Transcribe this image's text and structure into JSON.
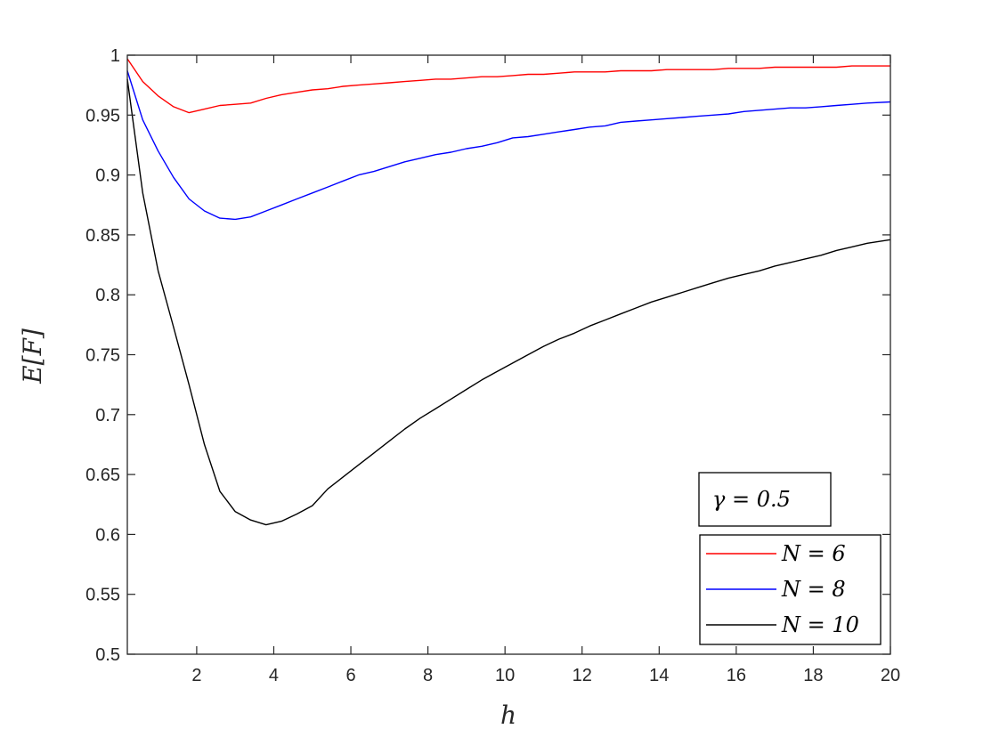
{
  "chart_data": {
    "type": "line",
    "xlabel": "h",
    "ylabel": "E[F]",
    "xlim": [
      0.2,
      20
    ],
    "ylim": [
      0.5,
      1
    ],
    "xticks": [
      "2",
      "4",
      "6",
      "8",
      "10",
      "12",
      "14",
      "16",
      "18",
      "20"
    ],
    "yticks": [
      "0.5",
      "0.55",
      "0.6",
      "0.65",
      "0.7",
      "0.75",
      "0.8",
      "0.85",
      "0.9",
      "0.95",
      "1"
    ],
    "annotation": "γ = 0.5",
    "legend_position": "bottom-right",
    "series": [
      {
        "name": "N = 6",
        "color": "#ff0000",
        "x": [
          0.2,
          0.6,
          1.0,
          1.4,
          1.8,
          2.2,
          2.6,
          3.0,
          3.4,
          3.8,
          4.2,
          4.6,
          5.0,
          5.4,
          5.8,
          6.2,
          6.6,
          7.0,
          7.4,
          7.8,
          8.2,
          8.6,
          9.0,
          9.4,
          9.8,
          10.2,
          10.6,
          11.0,
          11.4,
          11.8,
          12.2,
          12.6,
          13.0,
          13.4,
          13.8,
          14.2,
          14.6,
          15.0,
          15.4,
          15.8,
          16.2,
          16.6,
          17.0,
          17.4,
          17.8,
          18.2,
          18.6,
          19.0,
          19.4,
          20.0
        ],
        "y": [
          0.997,
          0.978,
          0.966,
          0.957,
          0.952,
          0.955,
          0.958,
          0.959,
          0.96,
          0.964,
          0.967,
          0.969,
          0.971,
          0.972,
          0.974,
          0.975,
          0.976,
          0.977,
          0.978,
          0.979,
          0.98,
          0.98,
          0.981,
          0.982,
          0.982,
          0.983,
          0.984,
          0.984,
          0.985,
          0.986,
          0.986,
          0.986,
          0.987,
          0.987,
          0.987,
          0.988,
          0.988,
          0.988,
          0.988,
          0.989,
          0.989,
          0.989,
          0.99,
          0.99,
          0.99,
          0.99,
          0.99,
          0.991,
          0.991,
          0.991
        ]
      },
      {
        "name": "N = 8",
        "color": "#0000ff",
        "x": [
          0.2,
          0.6,
          1.0,
          1.4,
          1.8,
          2.2,
          2.6,
          3.0,
          3.4,
          3.8,
          4.2,
          4.6,
          5.0,
          5.4,
          5.8,
          6.2,
          6.6,
          7.0,
          7.4,
          7.8,
          8.2,
          8.6,
          9.0,
          9.4,
          9.8,
          10.2,
          10.6,
          11.0,
          11.4,
          11.8,
          12.2,
          12.6,
          13.0,
          13.4,
          13.8,
          14.2,
          14.6,
          15.0,
          15.4,
          15.8,
          16.2,
          16.6,
          17.0,
          17.4,
          17.8,
          18.2,
          18.6,
          19.0,
          19.4,
          20.0
        ],
        "y": [
          0.987,
          0.946,
          0.92,
          0.898,
          0.88,
          0.87,
          0.864,
          0.863,
          0.865,
          0.87,
          0.875,
          0.88,
          0.885,
          0.89,
          0.895,
          0.9,
          0.903,
          0.907,
          0.911,
          0.914,
          0.917,
          0.919,
          0.922,
          0.924,
          0.927,
          0.931,
          0.932,
          0.934,
          0.936,
          0.938,
          0.94,
          0.941,
          0.944,
          0.945,
          0.946,
          0.947,
          0.948,
          0.949,
          0.95,
          0.951,
          0.953,
          0.954,
          0.955,
          0.956,
          0.956,
          0.957,
          0.958,
          0.959,
          0.96,
          0.961
        ]
      },
      {
        "name": "N = 10",
        "color": "#000000",
        "x": [
          0.2,
          0.6,
          1.0,
          1.4,
          1.8,
          2.2,
          2.6,
          3.0,
          3.4,
          3.8,
          4.2,
          4.6,
          5.0,
          5.4,
          5.8,
          6.2,
          6.6,
          7.0,
          7.4,
          7.8,
          8.2,
          8.6,
          9.0,
          9.4,
          9.8,
          10.2,
          10.6,
          11.0,
          11.4,
          11.8,
          12.2,
          12.6,
          13.0,
          13.4,
          13.8,
          14.2,
          14.6,
          15.0,
          15.4,
          15.8,
          16.2,
          16.6,
          17.0,
          17.4,
          17.8,
          18.2,
          18.6,
          19.0,
          19.4,
          20.0
        ],
        "y": [
          0.98,
          0.885,
          0.82,
          0.773,
          0.725,
          0.675,
          0.636,
          0.619,
          0.612,
          0.608,
          0.611,
          0.617,
          0.624,
          0.638,
          0.648,
          0.658,
          0.668,
          0.678,
          0.688,
          0.697,
          0.705,
          0.713,
          0.721,
          0.729,
          0.736,
          0.743,
          0.75,
          0.757,
          0.763,
          0.768,
          0.774,
          0.779,
          0.784,
          0.789,
          0.794,
          0.798,
          0.802,
          0.806,
          0.81,
          0.814,
          0.817,
          0.82,
          0.824,
          0.827,
          0.83,
          0.833,
          0.837,
          0.84,
          0.843,
          0.846
        ]
      }
    ]
  }
}
